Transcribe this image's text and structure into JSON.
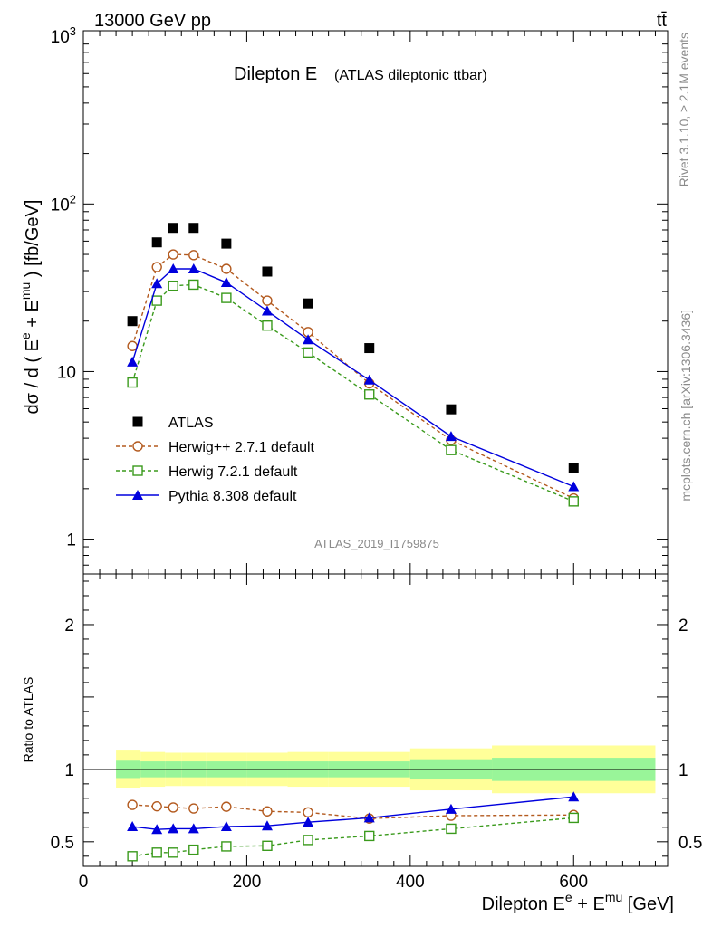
{
  "header": {
    "left": "13000 GeV pp",
    "right": "tt̄"
  },
  "side": {
    "rivet": "Rivet 3.1.10, ≥ 2.1M events",
    "mcplots": "mcplots.cern.ch [arXiv:1306.3436]"
  },
  "chart_data": [
    {
      "type": "scatter",
      "panel": "main",
      "title": "Dilepton E",
      "subtitle": "(ATLAS dileptonic ttbar)",
      "watermark": "ATLAS_2019_I1759875",
      "xlabel": "Dilepton E^e + E^mu [GeV]",
      "ylabel": "dσ / d ( E^e + E^mu ) [fb/GeV]",
      "yscale": "log",
      "xlim": [
        0,
        715
      ],
      "ylim": [
        0.62,
        1080
      ],
      "ytick_labels": [
        "1",
        "10",
        "10²",
        "10³"
      ],
      "x": [
        60,
        90,
        110,
        135,
        175,
        225,
        275,
        350,
        450,
        600
      ],
      "series": [
        {
          "name": "ATLAS",
          "color": "#000000",
          "marker": "square-filled",
          "line": "none",
          "values": [
            20,
            59,
            72,
            72,
            58,
            39.5,
            25.5,
            13.8,
            5.95,
            2.65
          ]
        },
        {
          "name": "Herwig++ 2.7.1 default",
          "color": "#b35a1f",
          "marker": "circle-open",
          "line": "dashed",
          "values": [
            14.2,
            42,
            50,
            49.5,
            41,
            26.5,
            17.2,
            8.5,
            3.9,
            1.75
          ]
        },
        {
          "name": "Herwig 7.2.1 default",
          "color": "#3a9a1c",
          "marker": "square-open",
          "line": "dashed",
          "values": [
            8.6,
            26.5,
            32.5,
            33,
            27.5,
            18.8,
            13.0,
            7.3,
            3.4,
            1.68
          ]
        },
        {
          "name": "Pythia 8.308 default",
          "color": "#0000dd",
          "marker": "triangle-filled",
          "line": "solid",
          "values": [
            11.4,
            33.5,
            41,
            41,
            34,
            23,
            15.5,
            8.9,
            4.1,
            2.06
          ]
        }
      ]
    },
    {
      "type": "line",
      "panel": "ratio",
      "ylabel": "Ratio to ATLAS",
      "xlim": [
        0,
        715
      ],
      "ylim": [
        0.33,
        2.35
      ],
      "ytick_labels": [
        "0.5",
        "1",
        "2"
      ],
      "xtick_labels": [
        "0",
        "200",
        "400",
        "600"
      ],
      "x": [
        60,
        90,
        110,
        135,
        175,
        225,
        275,
        350,
        450,
        600
      ],
      "band_bins": [
        [
          40,
          70
        ],
        [
          70,
          100
        ],
        [
          100,
          120
        ],
        [
          120,
          150
        ],
        [
          150,
          200
        ],
        [
          200,
          250
        ],
        [
          250,
          300
        ],
        [
          300,
          400
        ],
        [
          400,
          500
        ],
        [
          500,
          700
        ]
      ],
      "band_yellow": [
        0.13,
        0.12,
        0.115,
        0.115,
        0.115,
        0.115,
        0.12,
        0.12,
        0.145,
        0.165
      ],
      "band_green": [
        0.06,
        0.055,
        0.055,
        0.055,
        0.055,
        0.055,
        0.055,
        0.055,
        0.07,
        0.08
      ],
      "series": [
        {
          "name": "Herwig++ 2.7.1 default",
          "color": "#b35a1f",
          "marker": "circle-open",
          "line": "dashed",
          "values": [
            0.755,
            0.745,
            0.737,
            0.73,
            0.742,
            0.71,
            0.703,
            0.66,
            0.68,
            0.685
          ]
        },
        {
          "name": "Herwig 7.2.1 default",
          "color": "#3a9a1c",
          "marker": "square-open",
          "line": "dashed",
          "values": [
            0.4,
            0.425,
            0.425,
            0.445,
            0.468,
            0.472,
            0.512,
            0.54,
            0.59,
            0.665
          ]
        },
        {
          "name": "Pythia 8.308 default",
          "color": "#0000dd",
          "marker": "triangle-filled",
          "line": "solid",
          "values": [
            0.605,
            0.585,
            0.59,
            0.59,
            0.605,
            0.61,
            0.635,
            0.665,
            0.725,
            0.81
          ]
        }
      ]
    }
  ]
}
